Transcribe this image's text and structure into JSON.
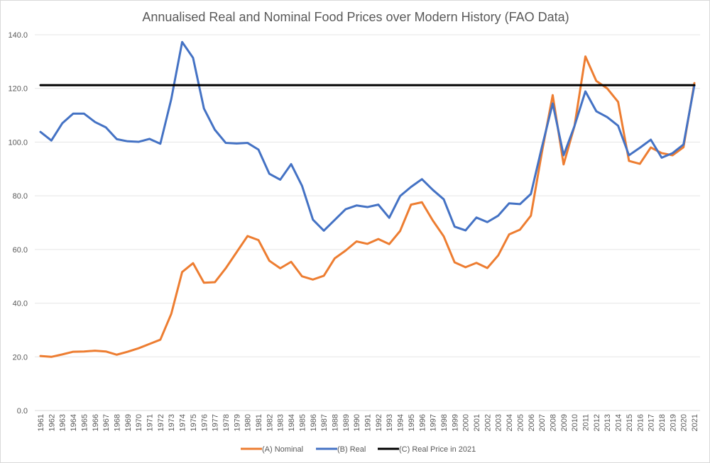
{
  "chart_data": {
    "type": "line",
    "title": "Annualised Real and Nominal Food Prices over Modern History (FAO Data)",
    "xlabel": "",
    "ylabel": "",
    "ylim": [
      0,
      140
    ],
    "yticks": [
      "0.0",
      "20.0",
      "40.0",
      "60.0",
      "80.0",
      "100.0",
      "120.0",
      "140.0"
    ],
    "grid": true,
    "legend_position": "bottom",
    "categories": [
      1961,
      1962,
      1963,
      1964,
      1965,
      1966,
      1967,
      1968,
      1969,
      1970,
      1971,
      1972,
      1973,
      1974,
      1975,
      1976,
      1977,
      1978,
      1979,
      1980,
      1981,
      1982,
      1983,
      1984,
      1985,
      1986,
      1987,
      1988,
      1989,
      1990,
      1991,
      1992,
      1993,
      1994,
      1995,
      1996,
      1997,
      1998,
      1999,
      2000,
      2001,
      2002,
      2003,
      2004,
      2005,
      2006,
      2007,
      2008,
      2009,
      2010,
      2011,
      2012,
      2013,
      2014,
      2015,
      2016,
      2017,
      2018,
      2019,
      2020,
      2021
    ],
    "series": [
      {
        "name": "(A) Nominal",
        "color": "#ed7d31",
        "values": [
          20.3,
          20.0,
          20.9,
          21.9,
          22.0,
          22.3,
          22.0,
          20.8,
          21.9,
          23.2,
          24.8,
          26.4,
          36.0,
          51.6,
          54.9,
          47.6,
          47.8,
          53.0,
          59.0,
          65.0,
          63.5,
          55.8,
          53.0,
          55.4,
          50.0,
          48.8,
          50.2,
          56.7,
          59.6,
          63.0,
          62.1,
          63.9,
          62.0,
          66.9,
          76.7,
          77.6,
          70.8,
          64.9,
          55.2,
          53.4,
          55.0,
          53.1,
          57.8,
          65.6,
          67.4,
          72.6,
          96.0,
          117.5,
          91.7,
          106.0,
          131.9,
          122.8,
          120.0,
          115.0,
          93.0,
          91.9,
          98.0,
          95.9,
          95.1,
          98.1,
          122.0
        ]
      },
      {
        "name": "(B) Real",
        "color": "#4472c4",
        "values": [
          103.8,
          100.6,
          107.0,
          110.6,
          110.6,
          107.5,
          105.5,
          101.1,
          100.3,
          100.1,
          101.2,
          99.4,
          116.0,
          137.3,
          131.4,
          112.5,
          104.6,
          99.7,
          99.5,
          99.7,
          97.2,
          88.2,
          86.0,
          91.8,
          83.7,
          71.1,
          67.0,
          71.0,
          75.0,
          76.4,
          75.8,
          76.7,
          71.8,
          79.9,
          83.3,
          86.2,
          82.2,
          78.7,
          68.5,
          67.1,
          71.9,
          70.2,
          72.6,
          77.2,
          76.9,
          80.7,
          98.0,
          114.4,
          95.1,
          106.0,
          118.9,
          111.5,
          109.3,
          106.1,
          95.1,
          97.9,
          100.9,
          94.2,
          95.9,
          99.1,
          121.2
        ]
      },
      {
        "name": "(C) Real Price in 2021",
        "color": "#000000",
        "constant": 121.2
      }
    ]
  }
}
